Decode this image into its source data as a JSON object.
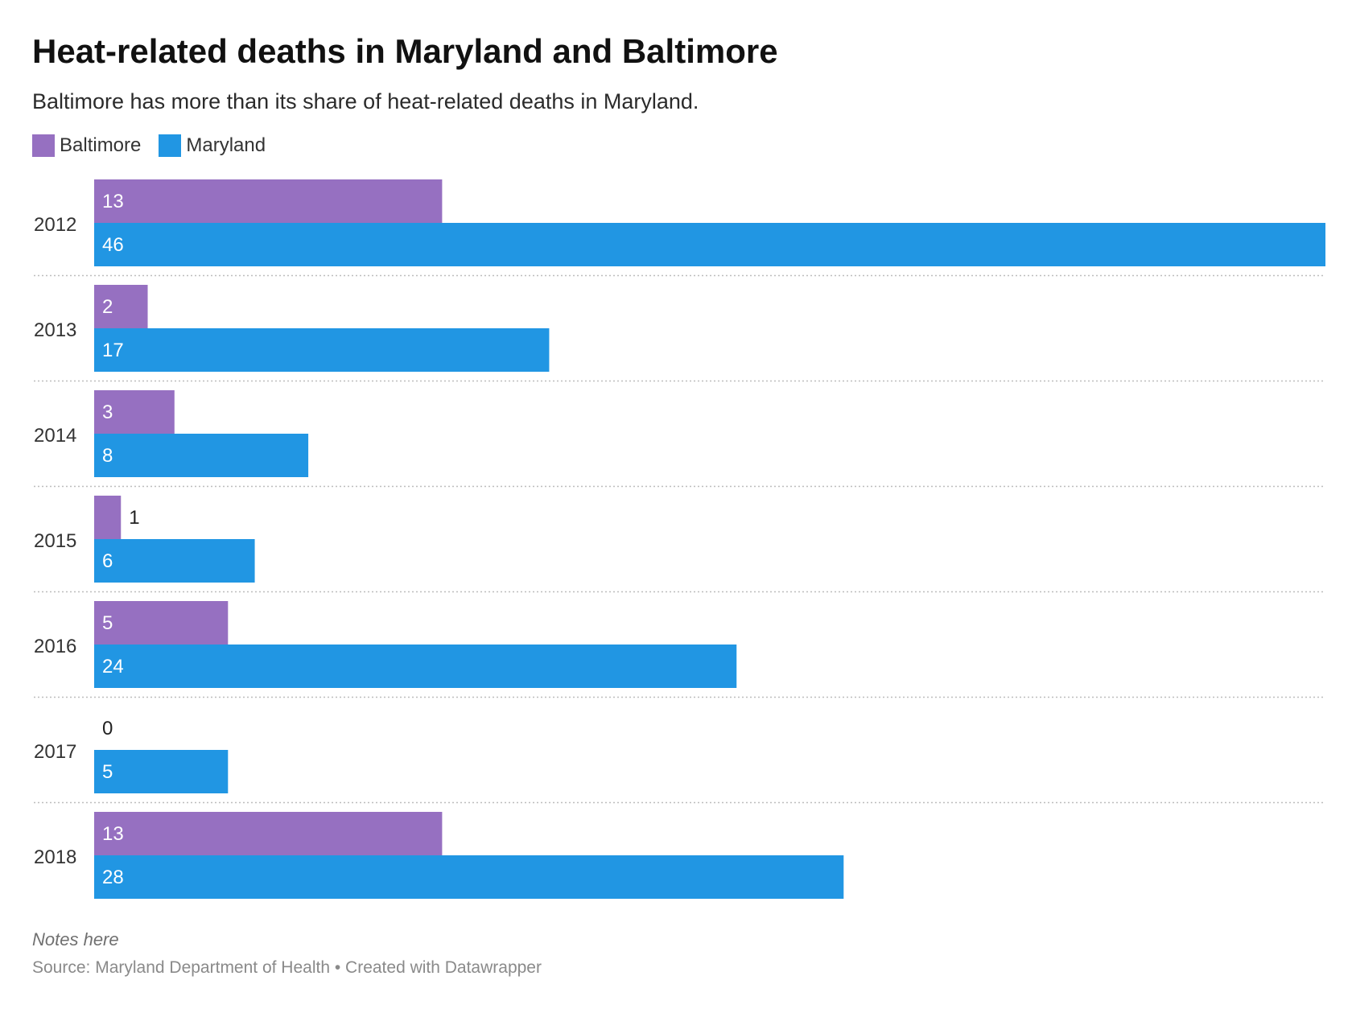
{
  "title": "Heat-related deaths in Maryland and Baltimore",
  "subtitle": "Baltimore has more than its share of heat-related deaths in Maryland.",
  "notes": "Notes here",
  "source": "Source: Maryland Department of Health • Created with Datawrapper",
  "chart_data": {
    "type": "bar",
    "orientation": "horizontal",
    "grouped": true,
    "categories": [
      "2012",
      "2013",
      "2014",
      "2015",
      "2016",
      "2017",
      "2018"
    ],
    "series": [
      {
        "name": "Baltimore",
        "color": "#9670c1",
        "values": [
          13,
          2,
          3,
          1,
          5,
          0,
          13
        ]
      },
      {
        "name": "Maryland",
        "color": "#2196e3",
        "values": [
          46,
          17,
          8,
          6,
          24,
          5,
          28
        ]
      }
    ],
    "xlim": [
      0,
      46
    ],
    "grid": false,
    "legend": "top-left",
    "row_separators": "dotted",
    "data_labels": true
  }
}
